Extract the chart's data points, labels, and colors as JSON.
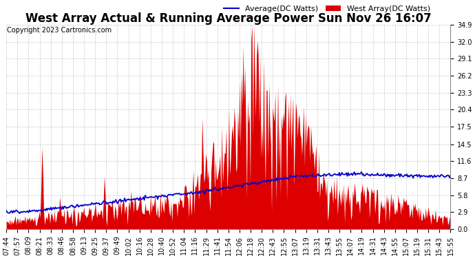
{
  "title": "West Array Actual & Running Average Power Sun Nov 26 16:07",
  "copyright": "Copyright 2023 Cartronics.com",
  "legend_avg": "Average(DC Watts)",
  "legend_west": "West Array(DC Watts)",
  "yticks": [
    0.0,
    2.9,
    5.8,
    8.7,
    11.6,
    14.5,
    17.5,
    20.4,
    23.3,
    26.2,
    29.1,
    32.0,
    34.9
  ],
  "ymax": 34.9,
  "ymin": 0.0,
  "bg_color": "#ffffff",
  "bar_color": "#dd0000",
  "line_color": "#0000cc",
  "grid_color": "#bbbbbb",
  "title_fontsize": 12,
  "copyright_fontsize": 7,
  "tick_fontsize": 7,
  "legend_fontsize": 8,
  "xtick_labels": [
    "07:44",
    "07:57",
    "08:09",
    "08:21",
    "08:33",
    "08:46",
    "08:58",
    "09:13",
    "09:25",
    "09:37",
    "09:49",
    "10:02",
    "10:16",
    "10:28",
    "10:40",
    "10:52",
    "11:04",
    "11:16",
    "11:29",
    "11:41",
    "11:54",
    "12:06",
    "12:18",
    "12:30",
    "12:43",
    "12:55",
    "13:07",
    "13:19",
    "13:31",
    "13:43",
    "13:55",
    "14:07",
    "14:19",
    "14:31",
    "14:43",
    "14:55",
    "15:07",
    "15:19",
    "15:31",
    "15:43",
    "15:55"
  ]
}
